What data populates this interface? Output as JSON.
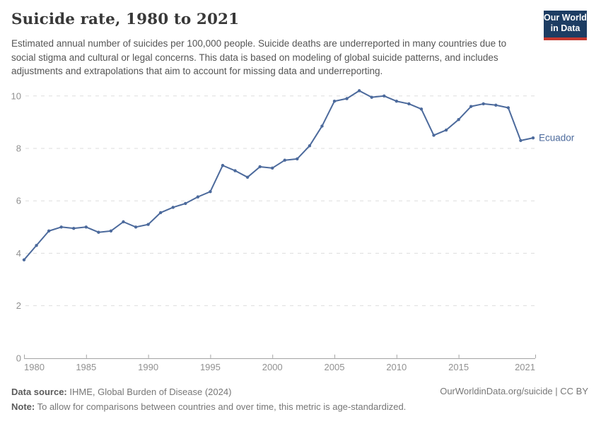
{
  "header": {
    "title": "Suicide rate, 1980 to 2021",
    "subtitle": "Estimated annual number of suicides per 100,000 people. Suicide deaths are underreported in many countries due to social stigma and cultural or legal concerns. This data is based on modeling of global suicide patterns, and includes adjustments and extrapolations that aim to account for missing data and underreporting.",
    "logo": {
      "line1": "Our World",
      "line2": "in Data"
    }
  },
  "chart_data": {
    "type": "line",
    "title": "Suicide rate, 1980 to 2021",
    "xlabel": "",
    "ylabel": "",
    "ylim": [
      0,
      10
    ],
    "yticks": [
      0,
      2,
      4,
      6,
      8,
      10
    ],
    "xticks": [
      1980,
      1985,
      1990,
      1995,
      2000,
      2005,
      2010,
      2015,
      2021
    ],
    "grid": "horizontal-dashed",
    "legend": "line-end-label",
    "x": [
      1980,
      1981,
      1982,
      1983,
      1984,
      1985,
      1986,
      1987,
      1988,
      1989,
      1990,
      1991,
      1992,
      1993,
      1994,
      1995,
      1996,
      1997,
      1998,
      1999,
      2000,
      2001,
      2002,
      2003,
      2004,
      2005,
      2006,
      2007,
      2008,
      2009,
      2010,
      2011,
      2012,
      2013,
      2014,
      2015,
      2016,
      2017,
      2018,
      2019,
      2020,
      2021
    ],
    "series": [
      {
        "name": "Ecuador",
        "color": "#4C6A9C",
        "values": [
          3.75,
          4.3,
          4.85,
          5.0,
          4.95,
          5.0,
          4.8,
          4.85,
          5.2,
          5.0,
          5.1,
          5.55,
          5.75,
          5.9,
          6.15,
          6.35,
          7.35,
          7.15,
          6.9,
          7.3,
          7.25,
          7.55,
          7.6,
          8.1,
          8.85,
          9.8,
          9.9,
          10.2,
          9.95,
          10.0,
          9.8,
          9.7,
          9.5,
          8.5,
          8.7,
          9.1,
          9.6,
          9.7,
          9.65,
          9.55,
          8.3,
          8.4
        ]
      }
    ]
  },
  "footer": {
    "datasource_label": "Data source:",
    "datasource_text": " IHME, Global Burden of Disease (2024)",
    "note_label": "Note:",
    "note_text": " To allow for comparisons between countries and over time, this metric is age-standardized.",
    "link": "OurWorldinData.org/suicide | CC BY"
  },
  "colors": {
    "line": "#4C6A9C",
    "grid": "#dddddd",
    "axis": "#a3a3a3",
    "tick_label": "#919191",
    "logo_bg": "#1D3D63",
    "logo_red": "#C4382F"
  }
}
